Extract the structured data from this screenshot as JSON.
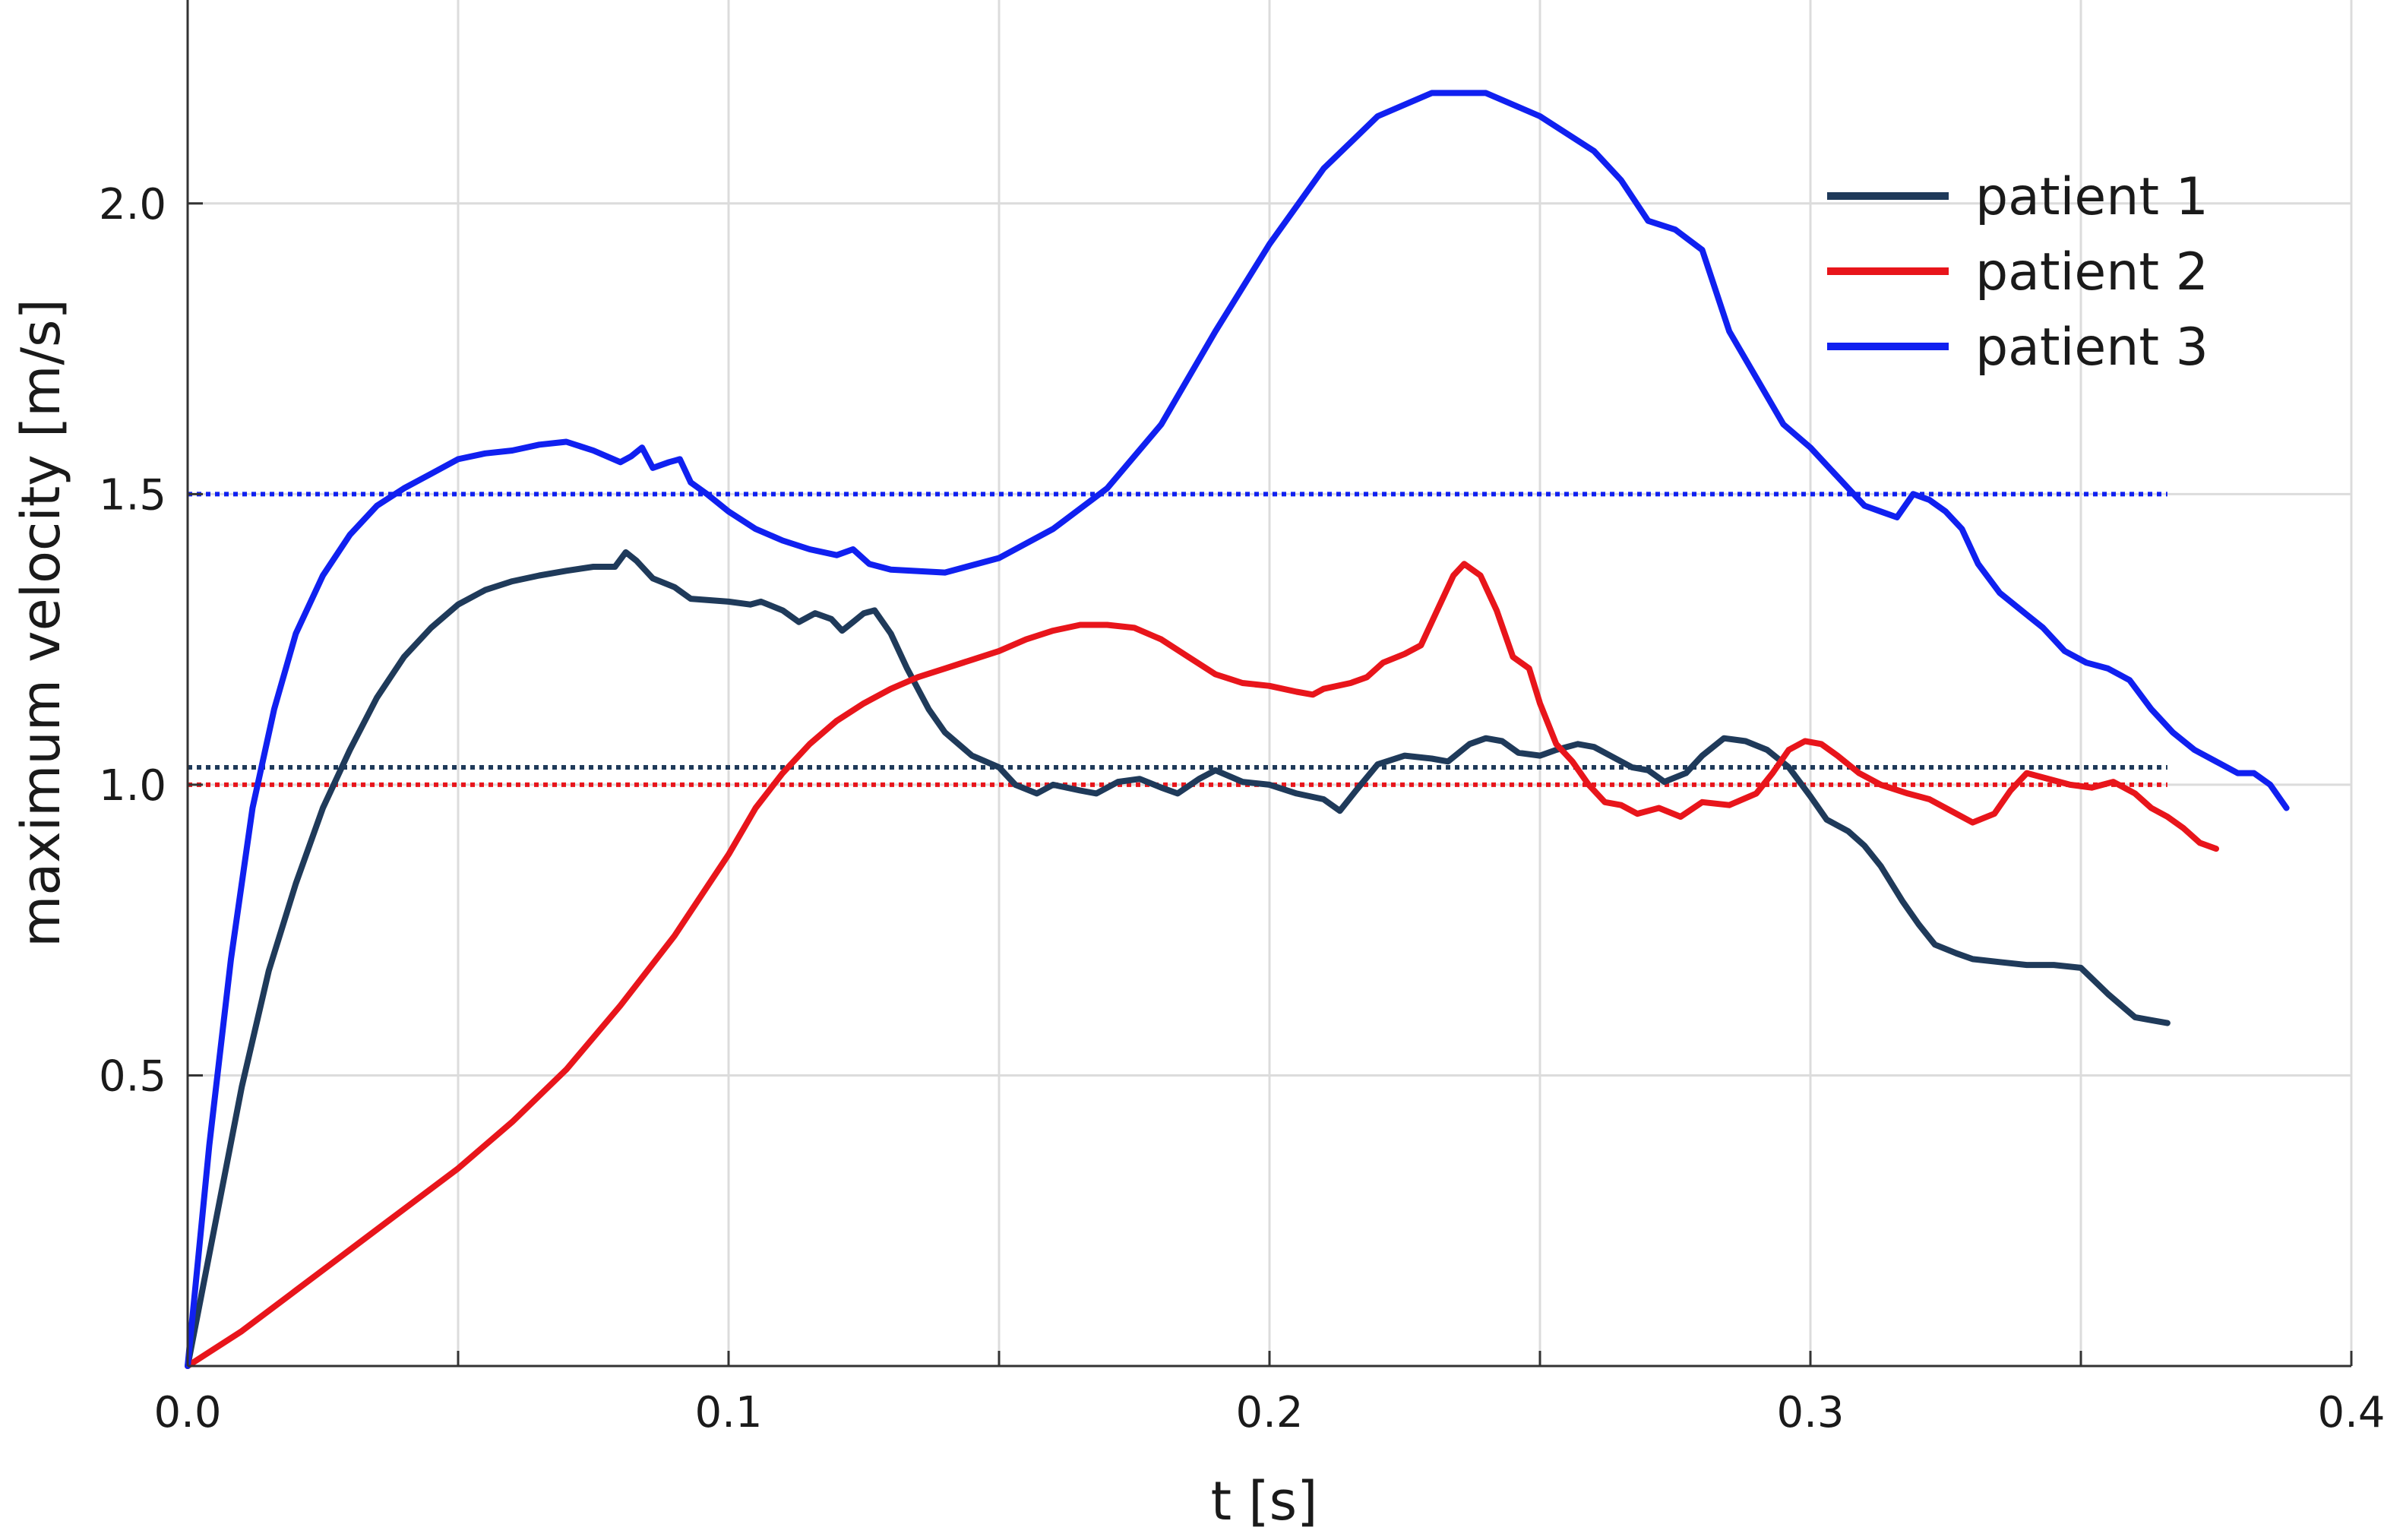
{
  "chart_data": {
    "type": "line",
    "xlabel": "t [s]",
    "ylabel": "maximum velocity [m/s]",
    "xlim": [
      0,
      0.4
    ],
    "ylim": [
      0,
      2.35
    ],
    "x_ticks": [
      0.0,
      0.1,
      0.2,
      0.3,
      0.4
    ],
    "x_tick_labels": [
      "0.0",
      "0.1",
      "0.2",
      "0.3",
      "0.4"
    ],
    "y_ticks": [
      0.5,
      1.0,
      1.5,
      2.0
    ],
    "y_tick_labels": [
      "0.5",
      "1.0",
      "1.5",
      "2.0"
    ],
    "grid": true,
    "legend_position": "top-right",
    "series": [
      {
        "name": "patient 1",
        "color": "#1f3a5a",
        "points": [
          [
            0.0,
            0.0
          ],
          [
            0.005,
            0.24
          ],
          [
            0.01,
            0.48
          ],
          [
            0.015,
            0.68
          ],
          [
            0.02,
            0.83
          ],
          [
            0.025,
            0.96
          ],
          [
            0.03,
            1.06
          ],
          [
            0.035,
            1.15
          ],
          [
            0.04,
            1.22
          ],
          [
            0.045,
            1.27
          ],
          [
            0.05,
            1.31
          ],
          [
            0.055,
            1.335
          ],
          [
            0.06,
            1.35
          ],
          [
            0.065,
            1.36
          ],
          [
            0.07,
            1.368
          ],
          [
            0.075,
            1.375
          ],
          [
            0.079,
            1.375
          ],
          [
            0.081,
            1.4
          ],
          [
            0.083,
            1.385
          ],
          [
            0.086,
            1.355
          ],
          [
            0.09,
            1.34
          ],
          [
            0.093,
            1.32
          ],
          [
            0.1,
            1.315
          ],
          [
            0.104,
            1.31
          ],
          [
            0.106,
            1.315
          ],
          [
            0.11,
            1.3
          ],
          [
            0.113,
            1.28
          ],
          [
            0.116,
            1.295
          ],
          [
            0.119,
            1.285
          ],
          [
            0.121,
            1.265
          ],
          [
            0.123,
            1.28
          ],
          [
            0.125,
            1.295
          ],
          [
            0.127,
            1.3
          ],
          [
            0.13,
            1.26
          ],
          [
            0.133,
            1.2
          ],
          [
            0.137,
            1.13
          ],
          [
            0.14,
            1.09
          ],
          [
            0.145,
            1.05
          ],
          [
            0.15,
            1.03
          ],
          [
            0.153,
            1.0
          ],
          [
            0.157,
            0.985
          ],
          [
            0.16,
            1.0
          ],
          [
            0.165,
            0.99
          ],
          [
            0.168,
            0.985
          ],
          [
            0.172,
            1.005
          ],
          [
            0.176,
            1.01
          ],
          [
            0.18,
            0.995
          ],
          [
            0.183,
            0.985
          ],
          [
            0.187,
            1.01
          ],
          [
            0.19,
            1.025
          ],
          [
            0.195,
            1.005
          ],
          [
            0.2,
            1.0
          ],
          [
            0.205,
            0.985
          ],
          [
            0.21,
            0.975
          ],
          [
            0.213,
            0.955
          ],
          [
            0.216,
            0.99
          ],
          [
            0.22,
            1.035
          ],
          [
            0.225,
            1.05
          ],
          [
            0.23,
            1.045
          ],
          [
            0.233,
            1.04
          ],
          [
            0.237,
            1.07
          ],
          [
            0.24,
            1.08
          ],
          [
            0.243,
            1.075
          ],
          [
            0.246,
            1.055
          ],
          [
            0.25,
            1.05
          ],
          [
            0.253,
            1.06
          ],
          [
            0.257,
            1.07
          ],
          [
            0.26,
            1.065
          ],
          [
            0.263,
            1.05
          ],
          [
            0.267,
            1.03
          ],
          [
            0.27,
            1.025
          ],
          [
            0.273,
            1.005
          ],
          [
            0.277,
            1.02
          ],
          [
            0.28,
            1.05
          ],
          [
            0.284,
            1.08
          ],
          [
            0.288,
            1.075
          ],
          [
            0.292,
            1.06
          ],
          [
            0.296,
            1.03
          ],
          [
            0.3,
            0.98
          ],
          [
            0.303,
            0.94
          ],
          [
            0.307,
            0.92
          ],
          [
            0.31,
            0.895
          ],
          [
            0.313,
            0.86
          ],
          [
            0.317,
            0.8
          ],
          [
            0.32,
            0.76
          ],
          [
            0.323,
            0.725
          ],
          [
            0.327,
            0.71
          ],
          [
            0.33,
            0.7
          ],
          [
            0.335,
            0.695
          ],
          [
            0.34,
            0.69
          ],
          [
            0.345,
            0.69
          ],
          [
            0.35,
            0.685
          ],
          [
            0.355,
            0.64
          ],
          [
            0.36,
            0.6
          ],
          [
            0.363,
            0.595
          ],
          [
            0.366,
            0.59
          ]
        ]
      },
      {
        "name": "patient 2",
        "color": "#e8151b",
        "points": [
          [
            0.0,
            0.0
          ],
          [
            0.01,
            0.06
          ],
          [
            0.02,
            0.13
          ],
          [
            0.03,
            0.2
          ],
          [
            0.04,
            0.27
          ],
          [
            0.05,
            0.34
          ],
          [
            0.06,
            0.42
          ],
          [
            0.07,
            0.51
          ],
          [
            0.08,
            0.62
          ],
          [
            0.09,
            0.74
          ],
          [
            0.1,
            0.88
          ],
          [
            0.105,
            0.96
          ],
          [
            0.11,
            1.02
          ],
          [
            0.115,
            1.07
          ],
          [
            0.12,
            1.11
          ],
          [
            0.125,
            1.14
          ],
          [
            0.13,
            1.165
          ],
          [
            0.135,
            1.185
          ],
          [
            0.14,
            1.2
          ],
          [
            0.145,
            1.215
          ],
          [
            0.15,
            1.23
          ],
          [
            0.155,
            1.25
          ],
          [
            0.16,
            1.265
          ],
          [
            0.165,
            1.275
          ],
          [
            0.17,
            1.275
          ],
          [
            0.175,
            1.27
          ],
          [
            0.18,
            1.25
          ],
          [
            0.185,
            1.22
          ],
          [
            0.19,
            1.19
          ],
          [
            0.195,
            1.175
          ],
          [
            0.2,
            1.17
          ],
          [
            0.205,
            1.16
          ],
          [
            0.208,
            1.155
          ],
          [
            0.21,
            1.165
          ],
          [
            0.215,
            1.175
          ],
          [
            0.218,
            1.185
          ],
          [
            0.221,
            1.21
          ],
          [
            0.225,
            1.225
          ],
          [
            0.228,
            1.24
          ],
          [
            0.231,
            1.3
          ],
          [
            0.234,
            1.36
          ],
          [
            0.236,
            1.38
          ],
          [
            0.239,
            1.36
          ],
          [
            0.242,
            1.3
          ],
          [
            0.245,
            1.22
          ],
          [
            0.248,
            1.2
          ],
          [
            0.25,
            1.14
          ],
          [
            0.253,
            1.07
          ],
          [
            0.256,
            1.04
          ],
          [
            0.259,
            1.0
          ],
          [
            0.262,
            0.97
          ],
          [
            0.265,
            0.965
          ],
          [
            0.268,
            0.95
          ],
          [
            0.272,
            0.96
          ],
          [
            0.276,
            0.945
          ],
          [
            0.28,
            0.97
          ],
          [
            0.285,
            0.965
          ],
          [
            0.29,
            0.985
          ],
          [
            0.293,
            1.02
          ],
          [
            0.296,
            1.06
          ],
          [
            0.299,
            1.075
          ],
          [
            0.302,
            1.07
          ],
          [
            0.305,
            1.05
          ],
          [
            0.309,
            1.02
          ],
          [
            0.313,
            1.0
          ],
          [
            0.318,
            0.985
          ],
          [
            0.322,
            0.975
          ],
          [
            0.326,
            0.955
          ],
          [
            0.33,
            0.935
          ],
          [
            0.334,
            0.95
          ],
          [
            0.337,
            0.99
          ],
          [
            0.34,
            1.02
          ],
          [
            0.344,
            1.01
          ],
          [
            0.348,
            1.0
          ],
          [
            0.352,
            0.995
          ],
          [
            0.356,
            1.005
          ],
          [
            0.36,
            0.985
          ],
          [
            0.363,
            0.96
          ],
          [
            0.366,
            0.945
          ],
          [
            0.369,
            0.925
          ],
          [
            0.372,
            0.9
          ],
          [
            0.375,
            0.89
          ]
        ]
      },
      {
        "name": "patient 3",
        "color": "#1020f0",
        "points": [
          [
            0.0,
            0.0
          ],
          [
            0.004,
            0.38
          ],
          [
            0.008,
            0.7
          ],
          [
            0.012,
            0.96
          ],
          [
            0.016,
            1.13
          ],
          [
            0.02,
            1.26
          ],
          [
            0.025,
            1.36
          ],
          [
            0.03,
            1.43
          ],
          [
            0.035,
            1.48
          ],
          [
            0.04,
            1.51
          ],
          [
            0.045,
            1.535
          ],
          [
            0.05,
            1.56
          ],
          [
            0.055,
            1.57
          ],
          [
            0.06,
            1.575
          ],
          [
            0.065,
            1.585
          ],
          [
            0.07,
            1.59
          ],
          [
            0.075,
            1.575
          ],
          [
            0.08,
            1.555
          ],
          [
            0.082,
            1.565
          ],
          [
            0.084,
            1.58
          ],
          [
            0.086,
            1.545
          ],
          [
            0.089,
            1.555
          ],
          [
            0.091,
            1.56
          ],
          [
            0.093,
            1.52
          ],
          [
            0.096,
            1.5
          ],
          [
            0.1,
            1.47
          ],
          [
            0.105,
            1.44
          ],
          [
            0.11,
            1.42
          ],
          [
            0.115,
            1.405
          ],
          [
            0.12,
            1.395
          ],
          [
            0.123,
            1.405
          ],
          [
            0.126,
            1.38
          ],
          [
            0.13,
            1.37
          ],
          [
            0.14,
            1.365
          ],
          [
            0.15,
            1.39
          ],
          [
            0.16,
            1.44
          ],
          [
            0.17,
            1.51
          ],
          [
            0.18,
            1.62
          ],
          [
            0.19,
            1.78
          ],
          [
            0.2,
            1.93
          ],
          [
            0.21,
            2.06
          ],
          [
            0.22,
            2.15
          ],
          [
            0.23,
            2.19
          ],
          [
            0.24,
            2.19
          ],
          [
            0.25,
            2.15
          ],
          [
            0.26,
            2.09
          ],
          [
            0.265,
            2.04
          ],
          [
            0.27,
            1.97
          ],
          [
            0.275,
            1.955
          ],
          [
            0.28,
            1.92
          ],
          [
            0.285,
            1.78
          ],
          [
            0.29,
            1.7
          ],
          [
            0.295,
            1.62
          ],
          [
            0.3,
            1.58
          ],
          [
            0.305,
            1.53
          ],
          [
            0.31,
            1.48
          ],
          [
            0.313,
            1.47
          ],
          [
            0.316,
            1.46
          ],
          [
            0.319,
            1.5
          ],
          [
            0.322,
            1.49
          ],
          [
            0.325,
            1.47
          ],
          [
            0.328,
            1.44
          ],
          [
            0.331,
            1.38
          ],
          [
            0.335,
            1.33
          ],
          [
            0.339,
            1.3
          ],
          [
            0.343,
            1.27
          ],
          [
            0.347,
            1.23
          ],
          [
            0.351,
            1.21
          ],
          [
            0.355,
            1.2
          ],
          [
            0.359,
            1.18
          ],
          [
            0.363,
            1.13
          ],
          [
            0.367,
            1.09
          ],
          [
            0.371,
            1.06
          ],
          [
            0.375,
            1.04
          ],
          [
            0.379,
            1.02
          ],
          [
            0.382,
            1.02
          ],
          [
            0.385,
            1.0
          ],
          [
            0.388,
            0.96
          ]
        ]
      }
    ],
    "reference_lines": [
      {
        "series": "patient 3",
        "y": 1.5,
        "style": "dotted",
        "color": "#1020f0"
      },
      {
        "series": "patient 1",
        "y": 1.03,
        "style": "dotted",
        "color": "#1f3a5a"
      },
      {
        "series": "patient 2",
        "y": 1.0,
        "style": "dotted",
        "color": "#e8151b"
      }
    ]
  }
}
